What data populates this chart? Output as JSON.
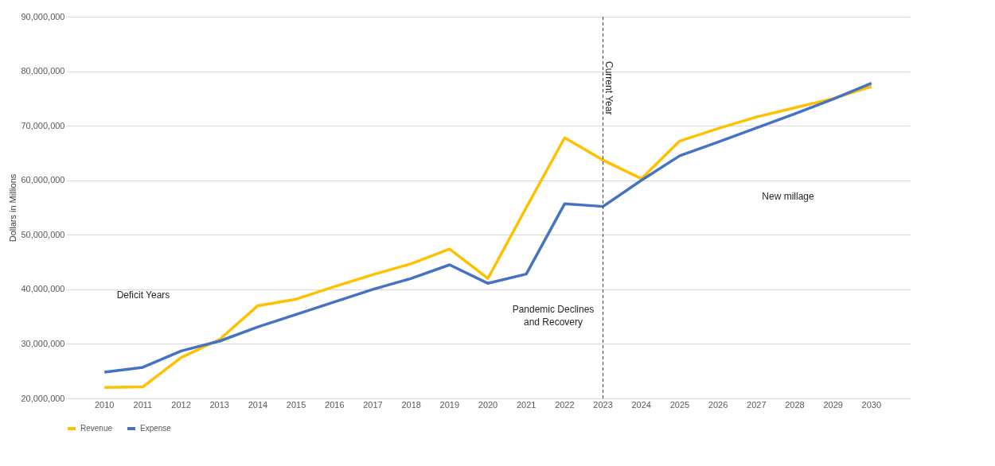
{
  "chart_data": {
    "type": "line",
    "ylabel": "Dollars in Millions",
    "categories": [
      "2010",
      "2011",
      "2012",
      "2013",
      "2014",
      "2015",
      "2016",
      "2017",
      "2018",
      "2019",
      "2020",
      "2021",
      "2022",
      "2023",
      "2024",
      "2025",
      "2026",
      "2027",
      "2028",
      "2029",
      "2030"
    ],
    "series": [
      {
        "name": "Revenue",
        "color": "#ffc000",
        "values": [
          22000000,
          22100000,
          27500000,
          30800000,
          37000000,
          38200000,
          40500000,
          42700000,
          44700000,
          47400000,
          42000000,
          55000000,
          67800000,
          63700000,
          60300000,
          67200000,
          69500000,
          71600000,
          73300000,
          75000000,
          77200000
        ]
      },
      {
        "name": "Expense",
        "color": "#4472c4",
        "values": [
          24800000,
          25700000,
          28700000,
          30500000,
          33100000,
          35400000,
          37700000,
          40000000,
          42000000,
          44500000,
          41100000,
          42800000,
          55700000,
          55200000,
          60000000,
          64500000,
          67000000,
          69600000,
          72200000,
          74900000,
          77800000
        ]
      }
    ],
    "ylim": [
      20000000,
      90000000
    ],
    "yticks": [
      {
        "value": 20000000,
        "label": "20,000,000"
      },
      {
        "value": 30000000,
        "label": "30,000,000"
      },
      {
        "value": 40000000,
        "label": "40,000,000"
      },
      {
        "value": 50000000,
        "label": "50,000,000"
      },
      {
        "value": 60000000,
        "label": "60,000,000"
      },
      {
        "value": 70000000,
        "label": "70,000,000"
      },
      {
        "value": 80000000,
        "label": "80,000,000"
      },
      {
        "value": 90000000,
        "label": "90,000,000"
      }
    ],
    "ref_lines": [
      {
        "axis": "x",
        "value": "2023",
        "label": "Current Year",
        "color": "#404040",
        "line_style": "dashed"
      }
    ],
    "annotations": [
      "Deficit Years",
      "Pandemic Declines and Recovery",
      "New millage"
    ],
    "grid": "y",
    "legend": "bottom",
    "line_style": "solid",
    "marker": "none"
  }
}
